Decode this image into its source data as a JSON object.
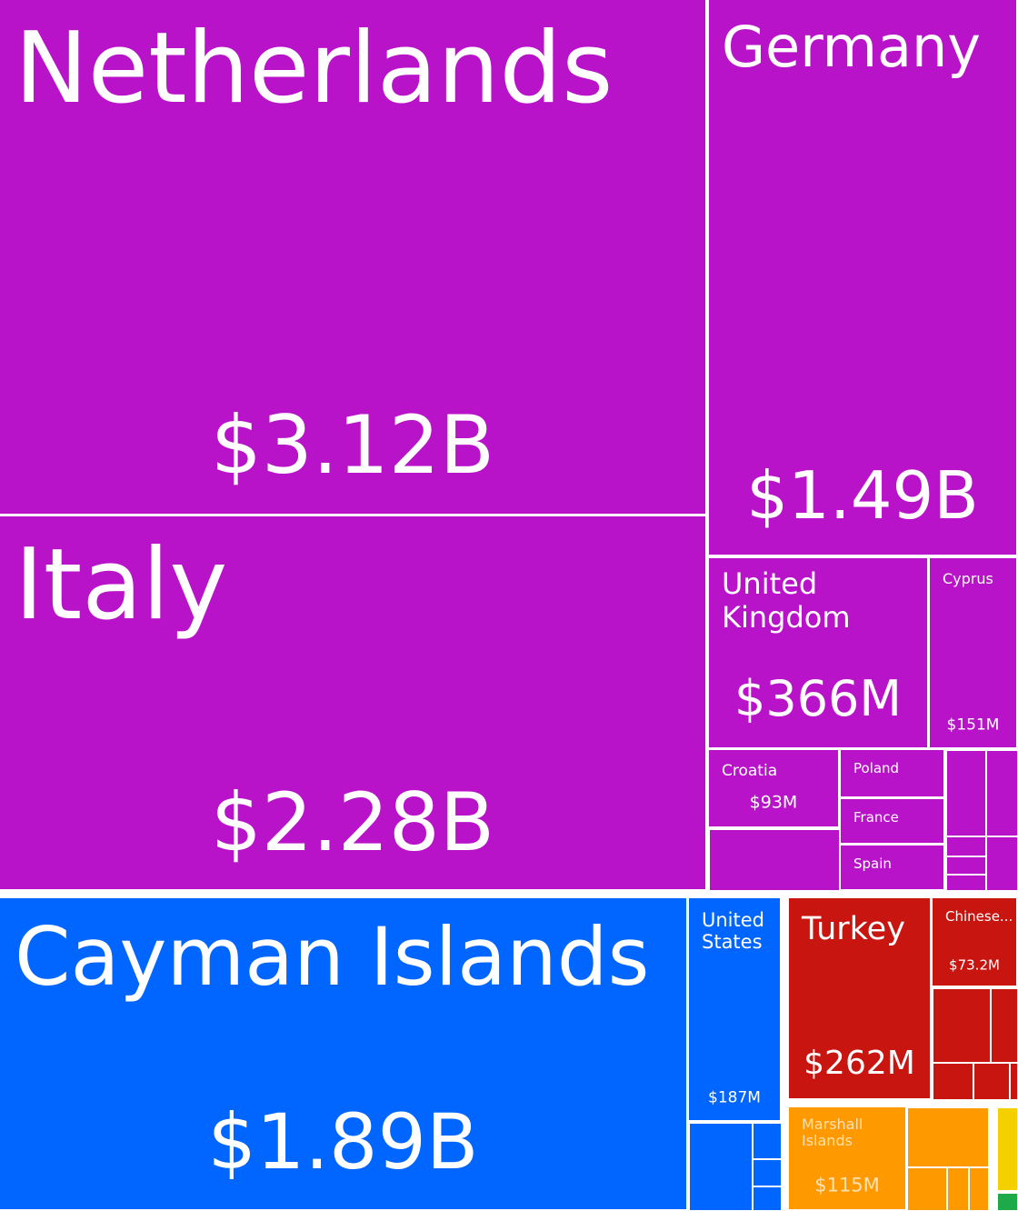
{
  "chart_data": {
    "type": "treemap",
    "categories": [
      "Netherlands",
      "Italy",
      "Germany",
      "United Kingdom",
      "Cyprus",
      "Croatia",
      "Poland",
      "France",
      "Spain",
      "Cayman Islands",
      "United States",
      "Turkey",
      "Chinese...",
      "Marshall Islands"
    ],
    "values": [
      3120000000,
      2280000000,
      1490000000,
      366000000,
      151000000,
      93000000,
      46000000,
      43000000,
      43000000,
      1890000000,
      187000000,
      262000000,
      73200000,
      115000000
    ],
    "value_labels": [
      "$3.12B",
      "$2.28B",
      "$1.49B",
      "$366M",
      "$151M",
      "$93M",
      null,
      null,
      null,
      "$1.89B",
      "$187M",
      "$262M",
      "$73.2M",
      "$115M"
    ],
    "colors": [
      "#b813c9",
      "#b813c9",
      "#b813c9",
      "#b813c9",
      "#b813c9",
      "#b813c9",
      "#b813c9",
      "#b813c9",
      "#b813c9",
      "#0066ff",
      "#0066ff",
      "#c8150f",
      "#c8150f",
      "#ff9900"
    ]
  }
}
